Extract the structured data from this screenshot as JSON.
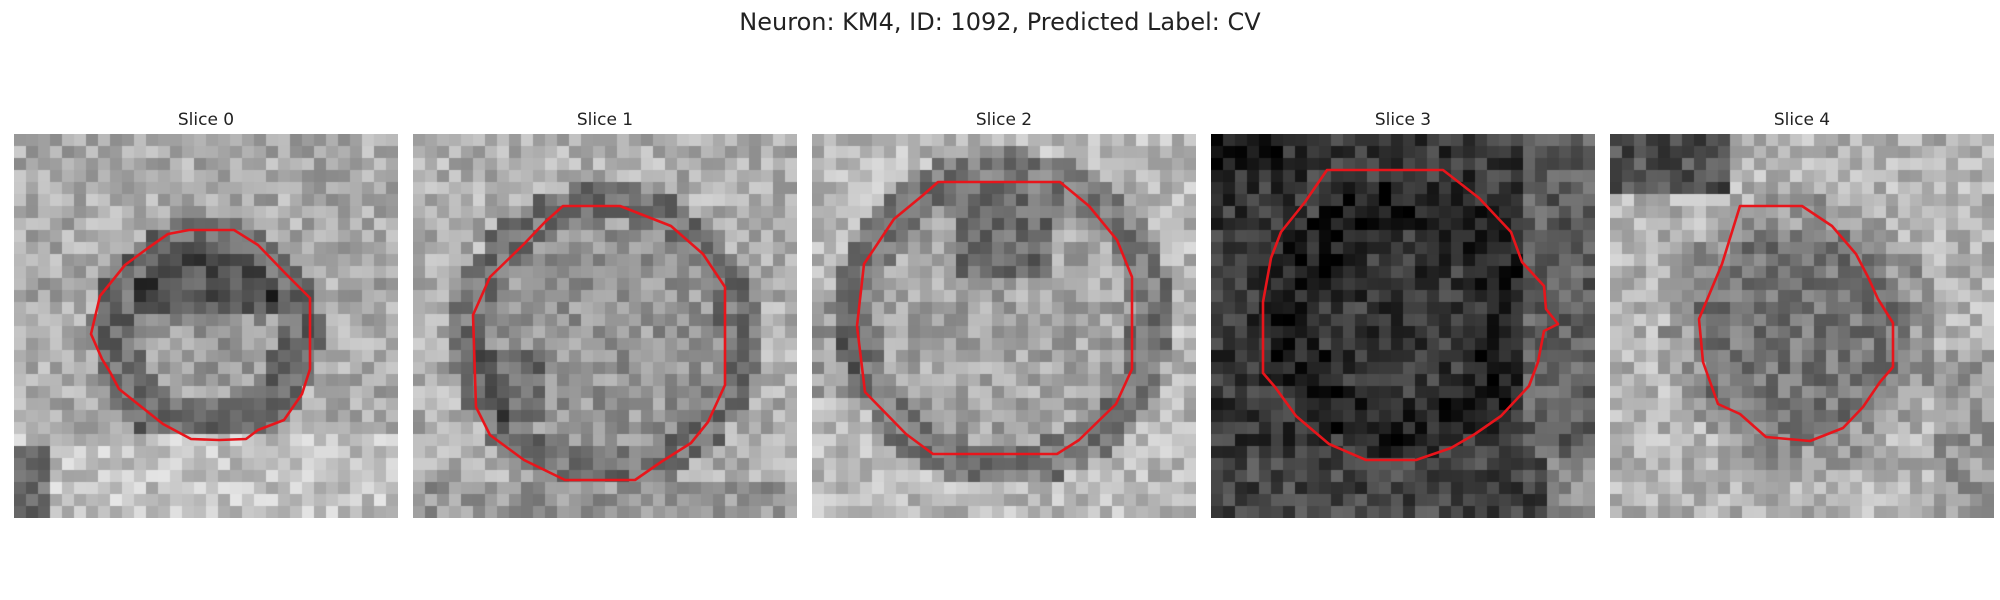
{
  "figure": {
    "title": "Neuron: KM4, ID: 1092, Predicted Label: CV"
  },
  "panels": [
    {
      "title": "Slice 0",
      "tone": "mid"
    },
    {
      "title": "Slice 1",
      "tone": "light"
    },
    {
      "title": "Slice 2",
      "tone": "light"
    },
    {
      "title": "Slice 3",
      "tone": "dark"
    },
    {
      "title": "Slice 4",
      "tone": "light"
    }
  ],
  "colors": {
    "outline": "#e8151b"
  }
}
